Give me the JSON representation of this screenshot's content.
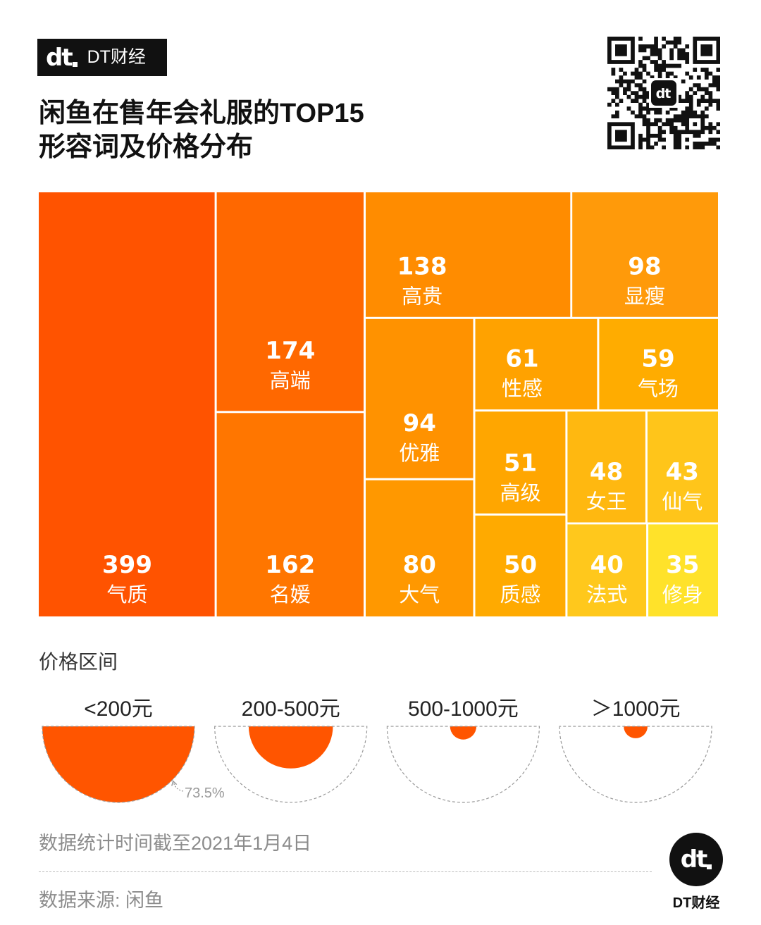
{
  "header": {
    "logo_mark": "dt",
    "brand": "DT财经",
    "title_line1": "闲鱼在售年会礼服的TOP15",
    "title_line2": "形容词及价格分布"
  },
  "chart_data": [
    {
      "type": "treemap",
      "categories": [
        "气质",
        "高端",
        "名媛",
        "高贵",
        "显瘦",
        "优雅",
        "大气",
        "性感",
        "气场",
        "高级",
        "质感",
        "女王",
        "仙气",
        "法式",
        "修身"
      ],
      "values": [
        399,
        174,
        162,
        138,
        98,
        94,
        80,
        61,
        59,
        51,
        50,
        48,
        43,
        40,
        35
      ],
      "colors": [
        "#FF5300",
        "#FF6800",
        "#FF7600",
        "#FF8C00",
        "#FF9A0A",
        "#FF9200",
        "#FF9800",
        "#FFA200",
        "#FFAC00",
        "#FFA600",
        "#FFAA00",
        "#FFB810",
        "#FFC51A",
        "#FFC81C",
        "#FFE22A"
      ]
    },
    {
      "type": "proportional-area",
      "title": "价格区间",
      "categories": [
        "<200元",
        "200-500元",
        "500-1000元",
        "＞1000元"
      ],
      "values": [
        73.5,
        22.5,
        2.2,
        1.8
      ],
      "annotation": "73.5%",
      "color": "#FF5500",
      "outline_color": "#999999"
    }
  ],
  "footer": {
    "note": "数据统计时间截至2021年1月4日",
    "source": "数据来源: 闲鱼",
    "brand": "DT财经",
    "logo_mark": "dt"
  }
}
